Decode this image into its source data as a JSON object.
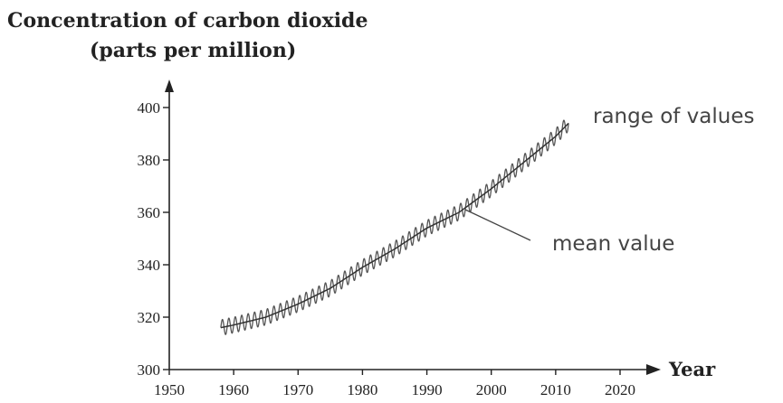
{
  "chart_data": {
    "type": "line",
    "title_line1": "Concentration of carbon dioxide",
    "title_line2": "(parts per million)",
    "xlabel": "Year",
    "ylabel": "",
    "xlim": [
      1950,
      2020
    ],
    "ylim": [
      300,
      400
    ],
    "xticks": [
      1950,
      1960,
      1970,
      1980,
      1990,
      2000,
      2010,
      2020
    ],
    "yticks": [
      300,
      320,
      340,
      360,
      380,
      400
    ],
    "seasonal_amplitude": 3,
    "grid": false,
    "series": [
      {
        "name": "mean value",
        "x": [
          1958,
          1960,
          1965,
          1970,
          1975,
          1980,
          1985,
          1990,
          1995,
          2000,
          2005,
          2010,
          2012
        ],
        "y": [
          316,
          317,
          320,
          325,
          331,
          339,
          346,
          354,
          360,
          369,
          379,
          389,
          394
        ]
      }
    ],
    "annotations": [
      {
        "text": "range of values",
        "target_x": 2012,
        "target_y": 395
      },
      {
        "text": "mean value",
        "target_x": 1996,
        "target_y": 361
      }
    ],
    "colors": {
      "line": "#555555",
      "axis": "#222222",
      "text": "#222222"
    }
  }
}
